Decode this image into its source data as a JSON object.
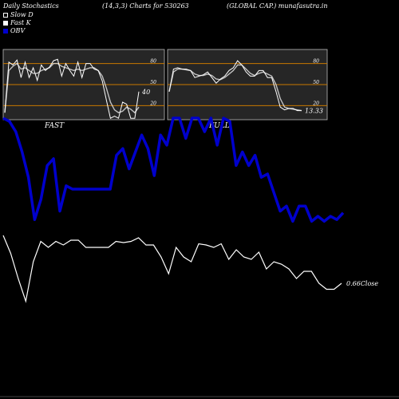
{
  "header": {
    "title": "Daily Stochastics",
    "params": "(14,3,3) Charts for 530263",
    "company": "(GLOBAL CAP.) munafasutra.in"
  },
  "legend": [
    {
      "label": "Slow  D",
      "color": "#000000"
    },
    {
      "label": "Fast K",
      "color": "#ffffff"
    },
    {
      "label": "OBV",
      "color": "#0000cc"
    }
  ],
  "chart_data": [
    {
      "type": "line",
      "title": "FAST",
      "ylim": [
        0,
        100
      ],
      "yticks": [
        "20",
        "50",
        "80"
      ],
      "reference_lines": [
        20,
        50,
        80
      ],
      "last_value_label": "40",
      "series": [
        {
          "name": "Fast K",
          "color": "#ffffff",
          "values": [
            10,
            82,
            78,
            85,
            60,
            82,
            60,
            74,
            56,
            78,
            70,
            75,
            84,
            86,
            62,
            80,
            70,
            62,
            82,
            60,
            80,
            80,
            72,
            70,
            55,
            28,
            2,
            5,
            2,
            25,
            22,
            2,
            2,
            40
          ]
        },
        {
          "name": "Slow D",
          "color": "#dddddd",
          "values": [
            10,
            70,
            76,
            80,
            72,
            74,
            70,
            66,
            66,
            70,
            72,
            74,
            80,
            80,
            76,
            74,
            72,
            70,
            72,
            70,
            72,
            74,
            74,
            70,
            62,
            45,
            25,
            14,
            10,
            12,
            18,
            15,
            10,
            18
          ]
        }
      ]
    },
    {
      "type": "line",
      "title": "FULL",
      "ylim": [
        0,
        100
      ],
      "yticks": [
        "20",
        "50",
        "80"
      ],
      "reference_lines": [
        20,
        50,
        80
      ],
      "last_value_label": "13.33",
      "series": [
        {
          "name": "Fast K",
          "color": "#ffffff",
          "values": [
            40,
            72,
            74,
            72,
            72,
            70,
            60,
            62,
            64,
            68,
            60,
            52,
            58,
            62,
            70,
            74,
            84,
            78,
            68,
            62,
            62,
            70,
            70,
            60,
            60,
            40,
            18,
            14,
            16,
            16,
            13,
            13
          ]
        },
        {
          "name": "Slow D",
          "color": "#dddddd",
          "values": [
            40,
            68,
            72,
            72,
            71,
            70,
            65,
            63,
            63,
            65,
            63,
            58,
            57,
            60,
            65,
            70,
            78,
            78,
            72,
            66,
            63,
            66,
            68,
            65,
            62,
            50,
            30,
            18,
            16,
            15,
            14,
            13
          ]
        }
      ]
    },
    {
      "type": "line",
      "last_value_label": "0.66Close",
      "series": [
        {
          "name": "OBV",
          "color": "#0000cc",
          "values": [
            100,
            98,
            92,
            80,
            65,
            40,
            52,
            72,
            76,
            45,
            60,
            58,
            58,
            58,
            58,
            58,
            58,
            58,
            78,
            82,
            70,
            80,
            90,
            82,
            66,
            90,
            84,
            100,
            100,
            88,
            100,
            100,
            92,
            100,
            84,
            100,
            98,
            72,
            80,
            72,
            78,
            65,
            67,
            56,
            45,
            48,
            39,
            48,
            48,
            39,
            42,
            39,
            42,
            40,
            44
          ]
        },
        {
          "name": "Close",
          "color": "#ffffff",
          "values": [
            60,
            45,
            24,
            5,
            38,
            55,
            50,
            55,
            52,
            56,
            56,
            50,
            50,
            50,
            50,
            55,
            54,
            55,
            58,
            52,
            52,
            42,
            28,
            50,
            42,
            38,
            53,
            52,
            50,
            53,
            40,
            48,
            42,
            40,
            46,
            32,
            38,
            36,
            32,
            24,
            30,
            30,
            20,
            15,
            15,
            20
          ]
        }
      ]
    }
  ]
}
